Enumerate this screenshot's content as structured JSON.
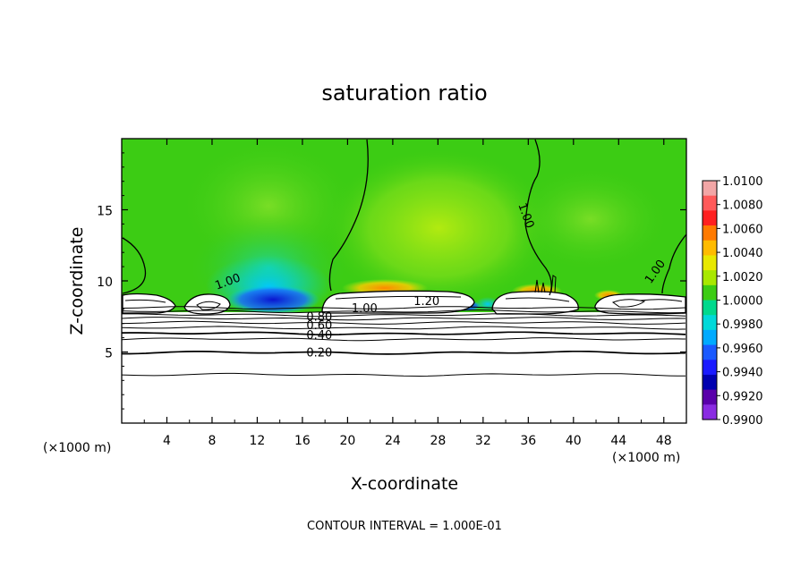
{
  "chart_data": {
    "type": "heatmap",
    "title": "saturation ratio",
    "xlabel": "X-coordinate",
    "ylabel": "Z-coordinate",
    "x_unit_left": "(×1000 m)",
    "x_unit_right": "(×1000 m)",
    "xlim": [
      0,
      50
    ],
    "ylim": [
      0,
      20
    ],
    "x_ticks": [
      4,
      8,
      12,
      16,
      20,
      24,
      28,
      32,
      36,
      40,
      44,
      48
    ],
    "y_ticks": [
      5,
      10,
      15
    ],
    "note": "CONTOUR INTERVAL = 1.000E-01",
    "colorbar": {
      "min": 0.99,
      "max": 1.01,
      "labels": [
        "1.0100",
        "1.0080",
        "1.0060",
        "1.0040",
        "1.0020",
        "1.0000",
        "0.9980",
        "0.9960",
        "0.9940",
        "0.9920",
        "0.9900"
      ],
      "colors": [
        "#f2a6a6",
        "#ff5a5a",
        "#ff2020",
        "#ff7a00",
        "#ffbb00",
        "#e8e800",
        "#a8e800",
        "#3ccc14",
        "#00d98c",
        "#00d9d9",
        "#00aaff",
        "#1a5aff",
        "#1a1aff",
        "#0000b0",
        "#5a00aa",
        "#8a2be2"
      ]
    },
    "contour_labels": [
      {
        "text": "1.00",
        "x": 9.5,
        "z": 9.7
      },
      {
        "text": "1.00",
        "x": 35.5,
        "z": 14.5
      },
      {
        "text": "1.00",
        "x": 47.5,
        "z": 10.5
      },
      {
        "text": "1.00",
        "x": 21.5,
        "z": 7.8
      },
      {
        "text": "1.20",
        "x": 27.0,
        "z": 8.3
      },
      {
        "text": "0.80",
        "x": 17.5,
        "z": 7.2
      },
      {
        "text": "0.60",
        "x": 17.5,
        "z": 6.6
      },
      {
        "text": "0.40",
        "x": 17.5,
        "z": 5.9
      },
      {
        "text": "0.20",
        "x": 17.5,
        "z": 4.7
      }
    ],
    "contour_lines_z": [
      3.4,
      4.95,
      5.9,
      6.3,
      6.7,
      7.05,
      7.35,
      7.6,
      7.85,
      8.1
    ]
  }
}
